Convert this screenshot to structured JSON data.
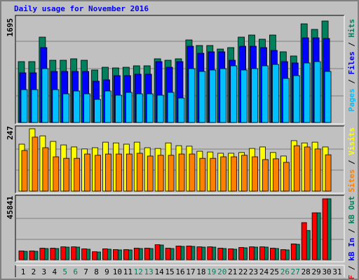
{
  "chart_data": [
    {
      "type": "bar",
      "title": "Daily usage for November 2016",
      "ylim": [
        0,
        1695
      ],
      "yticks": [
        1695
      ],
      "legend_separator": " / ",
      "series": [
        {
          "name": "Pages",
          "color": "#00c0ff",
          "values": [
            549,
            549,
            900,
            549,
            479,
            526,
            479,
            386,
            526,
            456,
            503,
            479,
            479,
            456,
            503,
            409,
            900,
            853,
            877,
            900,
            947,
            877,
            900,
            947,
            970,
            736,
            783,
            994,
            1017,
            853,
            null
          ]
        },
        {
          "name": "Files",
          "color": "#0000ff",
          "values": [
            830,
            830,
            1251,
            853,
            853,
            853,
            853,
            690,
            713,
            783,
            783,
            807,
            807,
            1017,
            923,
            1017,
            1274,
            1157,
            1181,
            1181,
            1040,
            1274,
            1274,
            1251,
            1204,
            1017,
            994,
            1414,
            1414,
            1403,
            null
          ]
        },
        {
          "name": "Hits",
          "color": "#00805c",
          "values": [
            1017,
            1017,
            1426,
            1040,
            1040,
            1064,
            1040,
            877,
            923,
            912,
            923,
            947,
            947,
            1064,
            1040,
            1064,
            1379,
            1286,
            1286,
            1227,
            1251,
            1426,
            1461,
            1391,
            1461,
            1181,
            1111,
            1648,
            1555,
            1695,
            null
          ]
        }
      ]
    },
    {
      "type": "bar",
      "ylim": [
        0,
        247
      ],
      "yticks": [
        247
      ],
      "legend_separator": " / ",
      "series": [
        {
          "name": "Sites",
          "color": "#ff8000",
          "values": [
            161,
            214,
            172,
            136,
            130,
            130,
            147,
            142,
            147,
            147,
            147,
            150,
            139,
            142,
            142,
            147,
            147,
            130,
            130,
            136,
            136,
            142,
            136,
            125,
            128,
            114,
            180,
            175,
            167,
            144,
            null
          ]
        },
        {
          "name": "Visits",
          "color": "#ffff00",
          "values": [
            186,
            247,
            219,
            197,
            183,
            175,
            167,
            172,
            194,
            191,
            186,
            194,
            172,
            169,
            191,
            180,
            178,
            158,
            155,
            150,
            150,
            153,
            169,
            175,
            153,
            139,
            200,
            191,
            194,
            175,
            null
          ]
        }
      ]
    },
    {
      "type": "bar",
      "ylim": [
        0,
        45841
      ],
      "yticks": [
        45841
      ],
      "legend_separator": " / ",
      "categories": [
        "1",
        "2",
        "3",
        "4",
        "5",
        "6",
        "7",
        "8",
        "9",
        "10",
        "11",
        "12",
        "13",
        "14",
        "15",
        "16",
        "17",
        "18",
        "19",
        "20",
        "21",
        "22",
        "23",
        "24",
        "25",
        "26",
        "27",
        "28",
        "29",
        "30",
        "31"
      ],
      "category_colors": [
        "#000000",
        "#000000",
        "#000000",
        "#000000",
        "#00805c",
        "#00805c",
        "#000000",
        "#000000",
        "#000000",
        "#000000",
        "#000000",
        "#00805c",
        "#00805c",
        "#000000",
        "#000000",
        "#000000",
        "#000000",
        "#000000",
        "#00805c",
        "#00805c",
        "#000000",
        "#000000",
        "#000000",
        "#000000",
        "#000000",
        "#00805c",
        "#00805c",
        "#000000",
        "#000000",
        "#000000",
        "#000000"
      ],
      "series": [
        {
          "name": "kB F",
          "color": "#ff0000",
          "values": [
            6600,
            6600,
            8700,
            8700,
            9700,
            9700,
            8200,
            6000,
            8200,
            7600,
            7600,
            8700,
            8700,
            11300,
            8700,
            10300,
            10300,
            9700,
            9700,
            8700,
            8200,
            9200,
            9700,
            9700,
            8700,
            7600,
            11900,
            27931,
            35309,
            45841,
            null
          ]
        },
        {
          "name": "kB In",
          "color": "#0000ff",
          "values": [
            0,
            0,
            0,
            0,
            0,
            0,
            0,
            0,
            0,
            0,
            0,
            0,
            0,
            0,
            0,
            0,
            0,
            0,
            0,
            0,
            0,
            0,
            0,
            0,
            0,
            0,
            0,
            0,
            0,
            0,
            null
          ]
        },
        {
          "name": "kB Out",
          "color": "#00805c",
          "values": [
            6324,
            6324,
            8432,
            8432,
            9486,
            9486,
            7905,
            5797,
            7905,
            7378,
            7378,
            8432,
            8432,
            11067,
            8432,
            10013,
            10013,
            9486,
            9486,
            8432,
            7905,
            8959,
            9486,
            9486,
            8432,
            7378,
            11594,
            22000,
            35309,
            45841,
            null
          ]
        }
      ]
    }
  ]
}
